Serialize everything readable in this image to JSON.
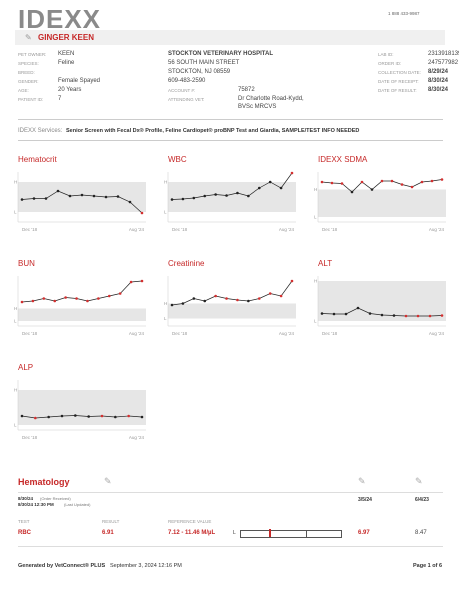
{
  "header": {
    "logo": "IDEXX",
    "phone": "1 888 433-9987"
  },
  "patient": {
    "name": "GINGER KEEN",
    "fields": [
      [
        "PET OWNER:",
        "KEEN"
      ],
      [
        "SPECIES:",
        "Feline"
      ],
      [
        "BREED:"
      ],
      [
        "GENDER:",
        "Female Spayed"
      ],
      [
        "AGE:",
        "20 Years"
      ],
      [
        "PATIENT ID:",
        "7"
      ]
    ]
  },
  "clinic": {
    "lines": [
      "STOCKTON VETERINARY HOSPITAL",
      "56 SOUTH MAIN STREET",
      "STOCKTON, NJ 08559",
      "609-483-2590"
    ],
    "fields": [
      [
        "ACCOUNT #:",
        "75872"
      ],
      [
        "ATTENDING VET:",
        "Dr Charlotte Road-Kydd,",
        "BVSc MRCVS"
      ]
    ]
  },
  "order": {
    "fields": [
      [
        "LAB ID:",
        "2313918139"
      ],
      [
        "ORDER ID:",
        "247577982"
      ],
      [
        "COLLECTION DATE:",
        "8/29/24"
      ],
      [
        "DATE OF RECEIPT:",
        "8/30/24"
      ],
      [
        "DATE OF RESULT:",
        "8/30/24"
      ]
    ]
  },
  "services": {
    "label": "IDEXX Services:",
    "text": "Senior Screen with Fecal Dx® Profile, Feline Cardiopet® proBNP Test and Giardia, SAMPLE/TEST INFO NEEDED"
  },
  "charts": [
    {
      "title": "Hematocrit",
      "high": "H",
      "low": "L",
      "start": "Dec '18",
      "end": "Aug '24",
      "normal_range": [
        20,
        80
      ],
      "values": [
        45,
        47,
        47,
        62,
        52,
        54,
        52,
        50,
        51,
        40,
        18
      ],
      "abnormal": [
        10
      ]
    },
    {
      "title": "WBC",
      "high": "H",
      "low": "L",
      "start": "Dec '18",
      "end": "Aug '24",
      "normal_range": [
        20,
        80
      ],
      "values": [
        45,
        46,
        48,
        52,
        55,
        53,
        58,
        52,
        68,
        80,
        68,
        98
      ],
      "abnormal": [
        11
      ]
    },
    {
      "title": "IDEXX SDMA",
      "high": "H",
      "low": "L",
      "start": "Dec '18",
      "end": "Aug '24",
      "normal_range": [
        10,
        65
      ],
      "values": [
        80,
        78,
        77,
        60,
        80,
        65,
        82,
        82,
        75,
        70,
        80,
        82,
        85
      ],
      "abnormal": [
        0,
        1,
        2,
        4,
        6,
        7,
        8,
        9,
        10,
        11,
        12
      ]
    },
    {
      "title": "BUN",
      "high": "H",
      "low": "L",
      "start": "Dec '18",
      "end": "Aug '24",
      "normal_range": [
        10,
        35
      ],
      "values": [
        48,
        50,
        55,
        50,
        57,
        55,
        50,
        55,
        60,
        65,
        88,
        90
      ],
      "abnormal": [
        0,
        1,
        2,
        3,
        4,
        5,
        6,
        7,
        8,
        9,
        10,
        11
      ]
    },
    {
      "title": "Creatinine",
      "high": "H",
      "low": "L",
      "start": "Dec '18",
      "end": "Aug '24",
      "normal_range": [
        15,
        45
      ],
      "values": [
        42,
        45,
        55,
        50,
        60,
        55,
        52,
        50,
        55,
        65,
        60,
        90
      ],
      "abnormal": [
        4,
        5,
        6,
        8,
        9,
        10,
        11
      ]
    },
    {
      "title": "ALT",
      "high": "H",
      "low": "L",
      "start": "Dec '18",
      "end": "Aug '24",
      "normal_range": [
        10,
        90
      ],
      "values": [
        25,
        24,
        24,
        36,
        25,
        22,
        21,
        20,
        20,
        20,
        21
      ],
      "abnormal": [
        7,
        8,
        9,
        10
      ]
    },
    {
      "title": "ALP",
      "high": "H",
      "low": "L",
      "start": "Dec '18",
      "end": "Aug '24",
      "normal_range": [
        10,
        80
      ],
      "values": [
        28,
        24,
        26,
        28,
        29,
        27,
        28,
        26,
        28,
        26
      ],
      "abnormal": [
        1,
        6,
        8
      ]
    }
  ],
  "hematology": {
    "title": "Hematology",
    "received": "8/30/24",
    "received_note": "(Order Received)",
    "updated": "8/30/24 12:30 PM",
    "updated_note": "(Last Updated)",
    "previous_dates": [
      "3/5/24",
      "6/4/23"
    ],
    "columns": [
      "TEST",
      "RESULT",
      "REFERENCE VALUE"
    ],
    "rows": [
      {
        "test": "RBC",
        "result": "6.91",
        "reference": "7.12 - 11.46 M/µL",
        "flag": "L",
        "previous": [
          "6.97",
          "8.47"
        ]
      }
    ]
  },
  "footer": {
    "generated": "Generated by VetConnect® PLUS",
    "date": "September 3, 2024 12:16 PM",
    "page": "Page 1 of 6"
  }
}
